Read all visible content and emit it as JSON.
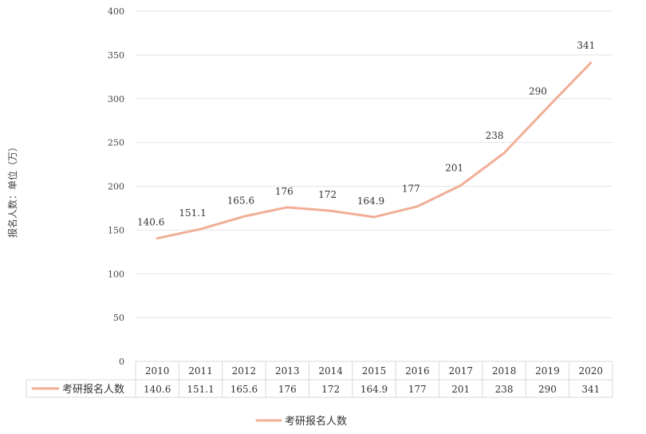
{
  "chart_data": {
    "type": "line",
    "title": "",
    "xlabel": "",
    "ylabel": "报名人数：单位（万）",
    "categories": [
      "2010",
      "2011",
      "2012",
      "2013",
      "2014",
      "2015",
      "2016",
      "2017",
      "2018",
      "2019",
      "2020"
    ],
    "series": [
      {
        "name": "考研报名人数",
        "values": [
          140.6,
          151.1,
          165.6,
          176,
          172,
          164.9,
          177,
          201,
          238,
          290,
          341
        ],
        "value_labels": [
          "140.6",
          "151.1",
          "165.6",
          "176",
          "172",
          "164.9",
          "177",
          "201",
          "238",
          "290",
          "341"
        ],
        "color": "#f0ae96"
      }
    ],
    "ylim": [
      0,
      400
    ],
    "yticks": [
      0,
      50,
      100,
      150,
      200,
      250,
      300,
      350,
      400
    ],
    "grid": true,
    "data_table": true,
    "legend_position": "bottom-center"
  }
}
